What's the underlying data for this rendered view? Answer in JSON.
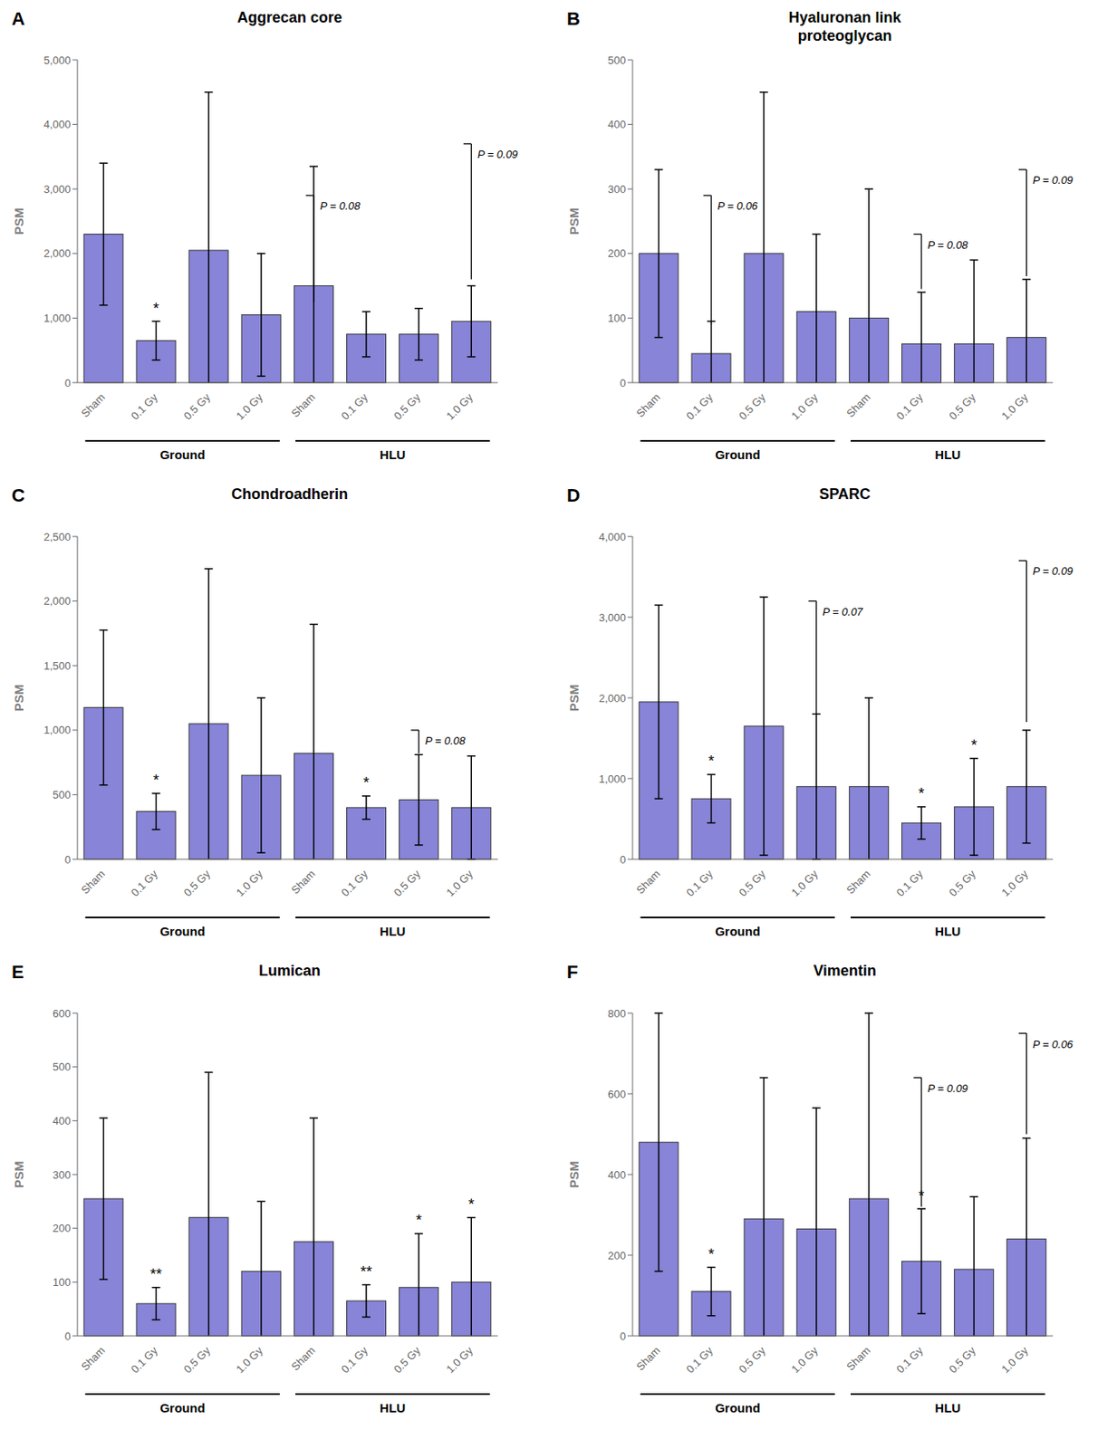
{
  "chart_data": [
    {
      "type": "bar",
      "panel_label": "A",
      "title": "Aggrecan core",
      "y_label": "PSM",
      "categories": [
        "Sham",
        "0.1 Gy",
        "0.5 Gy",
        "1.0 Gy",
        "Sham",
        "0.1 Gy",
        "0.5 Gy",
        "1.0 Gy"
      ],
      "group_labels": [
        "Ground",
        "HLU"
      ],
      "values": [
        2300,
        650,
        2050,
        1050,
        1500,
        750,
        750,
        950
      ],
      "errors": [
        1100,
        300,
        2450,
        950,
        1850,
        350,
        400,
        550
      ],
      "significance": [
        null,
        "*",
        null,
        null,
        null,
        null,
        null,
        null
      ],
      "annotations": [
        {
          "text": "P = 0.08",
          "index": 4,
          "y_top": 2900,
          "y_bottom": 1250
        },
        {
          "text": "P = 0.09",
          "index": 7,
          "y_top": 3700,
          "y_bottom": 1600
        }
      ],
      "ylim": [
        0,
        5000
      ],
      "yticks": [
        0,
        {
          "value": 1000,
          "label": "1,000"
        },
        {
          "value": 2000,
          "label": "2,000"
        },
        {
          "value": 3000,
          "label": "3,000"
        },
        {
          "value": 4000,
          "label": "4,000"
        },
        {
          "value": 5000,
          "label": "5,000"
        }
      ],
      "color": "#8884d8",
      "grid": false
    },
    {
      "type": "bar",
      "panel_label": "B",
      "title": "Hyaluronan link\nproteoglycan",
      "y_label": "PSM",
      "categories": [
        "Sham",
        "0.1 Gy",
        "0.5 Gy",
        "1.0 Gy",
        "Sham",
        "0.1 Gy",
        "0.5 Gy",
        "1.0 Gy"
      ],
      "group_labels": [
        "Ground",
        "HLU"
      ],
      "values": [
        200,
        45,
        200,
        110,
        100,
        60,
        60,
        70
      ],
      "errors": [
        130,
        50,
        250,
        120,
        200,
        80,
        130,
        90
      ],
      "significance": [
        null,
        null,
        null,
        null,
        null,
        null,
        null,
        null
      ],
      "annotations": [
        {
          "text": "P = 0.06",
          "index": 1,
          "y_top": 290,
          "y_bottom": 90
        },
        {
          "text": "P = 0.08",
          "index": 5,
          "y_top": 230,
          "y_bottom": 145
        },
        {
          "text": "P = 0.09",
          "index": 7,
          "y_top": 330,
          "y_bottom": 165
        }
      ],
      "ylim": [
        0,
        500
      ],
      "yticks": [
        0,
        100,
        200,
        300,
        400,
        500
      ],
      "color": "#8884d8",
      "grid": false
    },
    {
      "type": "bar",
      "panel_label": "C",
      "title": "Chondroadherin",
      "y_label": "PSM",
      "categories": [
        "Sham",
        "0.1 Gy",
        "0.5 Gy",
        "1.0 Gy",
        "Sham",
        "0.1 Gy",
        "0.5 Gy",
        "1.0 Gy"
      ],
      "group_labels": [
        "Ground",
        "HLU"
      ],
      "values": [
        1175,
        370,
        1050,
        650,
        820,
        400,
        460,
        400
      ],
      "errors": [
        600,
        140,
        1200,
        600,
        1000,
        90,
        350,
        400
      ],
      "significance": [
        null,
        "*",
        null,
        null,
        null,
        "*",
        null,
        null
      ],
      "annotations": [
        {
          "text": "P = 0.08",
          "index": 6,
          "y_top": 1000,
          "y_bottom": 820
        }
      ],
      "ylim": [
        0,
        2500
      ],
      "yticks": [
        0,
        500,
        {
          "value": 1000,
          "label": "1,000"
        },
        {
          "value": 1500,
          "label": "1,500"
        },
        {
          "value": 2000,
          "label": "2,000"
        },
        {
          "value": 2500,
          "label": "2,500"
        }
      ],
      "color": "#8884d8",
      "grid": false
    },
    {
      "type": "bar",
      "panel_label": "D",
      "title": "SPARC",
      "y_label": "PSM",
      "categories": [
        "Sham",
        "0.1 Gy",
        "0.5 Gy",
        "1.0 Gy",
        "Sham",
        "0.1 Gy",
        "0.5 Gy",
        "1.0 Gy"
      ],
      "group_labels": [
        "Ground",
        "HLU"
      ],
      "values": [
        1950,
        750,
        1650,
        900,
        900,
        450,
        650,
        900
      ],
      "errors": [
        1200,
        300,
        1600,
        900,
        1100,
        200,
        600,
        700
      ],
      "significance": [
        null,
        "*",
        null,
        null,
        null,
        "*",
        "*",
        null
      ],
      "annotations": [
        {
          "text": "P = 0.07",
          "index": 3,
          "y_top": 3200,
          "y_bottom": 1800
        },
        {
          "text": "P = 0.09",
          "index": 7,
          "y_top": 3700,
          "y_bottom": 1700
        }
      ],
      "ylim": [
        0,
        4000
      ],
      "yticks": [
        0,
        {
          "value": 1000,
          "label": "1,000"
        },
        {
          "value": 2000,
          "label": "2,000"
        },
        {
          "value": 3000,
          "label": "3,000"
        },
        {
          "value": 4000,
          "label": "4,000"
        }
      ],
      "color": "#8884d8",
      "grid": false
    },
    {
      "type": "bar",
      "panel_label": "E",
      "title": "Lumican",
      "y_label": "PSM",
      "categories": [
        "Sham",
        "0.1 Gy",
        "0.5 Gy",
        "1.0 Gy",
        "Sham",
        "0.1 Gy",
        "0.5 Gy",
        "1.0 Gy"
      ],
      "group_labels": [
        "Ground",
        "HLU"
      ],
      "values": [
        255,
        60,
        220,
        120,
        175,
        65,
        90,
        100
      ],
      "errors": [
        150,
        30,
        270,
        130,
        230,
        30,
        100,
        120
      ],
      "significance": [
        null,
        "**",
        null,
        null,
        null,
        "**",
        "*",
        "*"
      ],
      "annotations": [],
      "ylim": [
        0,
        600
      ],
      "yticks": [
        0,
        100,
        200,
        300,
        400,
        500,
        600
      ],
      "color": "#8884d8",
      "grid": false
    },
    {
      "type": "bar",
      "panel_label": "F",
      "title": "Vimentin",
      "y_label": "PSM",
      "categories": [
        "Sham",
        "0.1 Gy",
        "0.5 Gy",
        "1.0 Gy",
        "Sham",
        "0.1 Gy",
        "0.5 Gy",
        "1.0 Gy"
      ],
      "group_labels": [
        "Ground",
        "HLU"
      ],
      "values": [
        480,
        110,
        290,
        265,
        340,
        185,
        165,
        240
      ],
      "errors": [
        320,
        60,
        350,
        300,
        460,
        130,
        180,
        250
      ],
      "significance": [
        null,
        "*",
        null,
        null,
        null,
        "*",
        null,
        null
      ],
      "annotations": [
        {
          "text": "P = 0.09",
          "index": 5,
          "y_top": 640,
          "y_bottom": 320
        },
        {
          "text": "P = 0.06",
          "index": 7,
          "y_top": 750,
          "y_bottom": 500
        }
      ],
      "ylim": [
        0,
        800
      ],
      "yticks": [
        0,
        200,
        400,
        600,
        800
      ],
      "color": "#8884d8",
      "grid": false
    }
  ]
}
